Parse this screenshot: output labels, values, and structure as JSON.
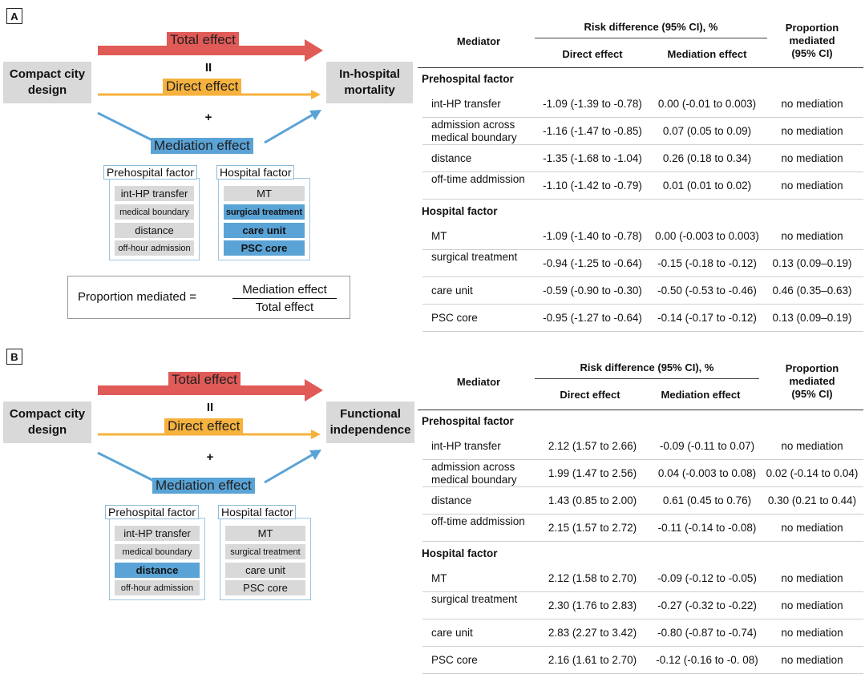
{
  "panels": [
    {
      "label": "A",
      "diagram": {
        "exposure": "Compact city\ndesign",
        "outcome": "In-hospital\nmortality",
        "total_effect": "Total effect",
        "equals_symbol": "II",
        "direct_effect": "Direct effect",
        "plus_symbol": "+",
        "mediation_effect": "Mediation effect",
        "prehospital_title": "Prehospital factor",
        "prehospital_items": [
          {
            "text": "int-HP transfer",
            "highlight": false
          },
          {
            "text": "medical boundary",
            "highlight": false
          },
          {
            "text": "distance",
            "highlight": false
          },
          {
            "text": "off-hour admission",
            "highlight": false
          }
        ],
        "hospital_title": "Hospital factor",
        "hospital_items": [
          {
            "text": "MT",
            "highlight": false
          },
          {
            "text": "surgical treatment",
            "highlight": true
          },
          {
            "text": "care unit",
            "highlight": true
          },
          {
            "text": "PSC core",
            "highlight": true
          }
        ],
        "formula": {
          "lhs": "Proportion mediated =",
          "numerator": "Mediation effect",
          "denominator": "Total effect"
        }
      },
      "table": {
        "col_mediator": "Mediator",
        "col_risk_difference": "Risk difference (95% CI), %",
        "col_direct": "Direct effect",
        "col_mediation": "Mediation effect",
        "col_proportion": "Proportion\nmediated\n(95% CI)",
        "sections": [
          {
            "title": "Prehospital factor",
            "rows": [
              {
                "mediator": "int-HP transfer",
                "direct": "-1.09 (-1.39 to -0.78)",
                "mediation": "0.00 (-0.01 to 0.003)",
                "proportion": "no mediation"
              },
              {
                "mediator": "admission across medical boundary",
                "direct": "-1.16 (-1.47 to -0.85)",
                "mediation": "0.07 (0.05 to 0.09)",
                "proportion": "no mediation"
              },
              {
                "mediator": "distance",
                "direct": "-1.35 (-1.68 to -1.04)",
                "mediation": "0.26 (0.18 to 0.34)",
                "proportion": "no mediation"
              },
              {
                "mediator": "off-time addmission",
                "direct": "-1.10 (-1.42 to -0.79)",
                "mediation": "0.01 (0.01 to 0.02)",
                "proportion": "no mediation"
              }
            ]
          },
          {
            "title": "Hospital factor",
            "rows": [
              {
                "mediator": "MT",
                "direct": "-1.09 (-1.40 to -0.78)",
                "mediation": "0.00 (-0.003 to 0.003)",
                "proportion": "no mediation"
              },
              {
                "mediator": "surgical treatment",
                "direct": "-0.94 (-1.25 to -0.64)",
                "mediation": "-0.15 (-0.18 to -0.12)",
                "proportion": "0.13 (0.09–0.19)"
              },
              {
                "mediator": "care unit",
                "direct": "-0.59 (-0.90 to -0.30)",
                "mediation": "-0.50 (-0.53 to -0.46)",
                "proportion": "0.46 (0.35–0.63)"
              },
              {
                "mediator": "PSC core",
                "direct": "-0.95 (-1.27 to -0.64)",
                "mediation": "-0.14 (-0.17 to -0.12)",
                "proportion": "0.13 (0.09–0.19)"
              }
            ]
          }
        ]
      }
    },
    {
      "label": "B",
      "diagram": {
        "exposure": "Compact city\ndesign",
        "outcome": "Functional\nindependence",
        "total_effect": "Total effect",
        "equals_symbol": "II",
        "direct_effect": "Direct effect",
        "plus_symbol": "+",
        "mediation_effect": "Mediation effect",
        "prehospital_title": "Prehospital factor",
        "prehospital_items": [
          {
            "text": "int-HP transfer",
            "highlight": false
          },
          {
            "text": "medical boundary",
            "highlight": false
          },
          {
            "text": "distance",
            "highlight": true
          },
          {
            "text": "off-hour admission",
            "highlight": false
          }
        ],
        "hospital_title": "Hospital factor",
        "hospital_items": [
          {
            "text": "MT",
            "highlight": false
          },
          {
            "text": "surgical treatment",
            "highlight": false
          },
          {
            "text": "care unit",
            "highlight": false
          },
          {
            "text": "PSC core",
            "highlight": false
          }
        ]
      },
      "table": {
        "col_mediator": "Mediator",
        "col_risk_difference": "Risk difference (95% CI), %",
        "col_direct": "Direct effect",
        "col_mediation": "Mediation effect",
        "col_proportion": "Proportion\nmediated\n(95% CI)",
        "sections": [
          {
            "title": "Prehospital factor",
            "rows": [
              {
                "mediator": "int-HP transfer",
                "direct": "2.12 (1.57 to 2.66)",
                "mediation": "-0.09 (-0.11 to 0.07)",
                "proportion": "no mediation"
              },
              {
                "mediator": "admission across medical boundary",
                "direct": "1.99 (1.47 to 2.56)",
                "mediation": "0.04 (-0.003 to 0.08)",
                "proportion": "0.02 (-0.14 to 0.04)"
              },
              {
                "mediator": "distance",
                "direct": "1.43 (0.85 to 2.00)",
                "mediation": "0.61 (0.45 to 0.76)",
                "proportion": "0.30 (0.21 to 0.44)"
              },
              {
                "mediator": "off-time addmission",
                "direct": "2.15 (1.57 to 2.72)",
                "mediation": "-0.11 (-0.14 to -0.08)",
                "proportion": "no mediation"
              }
            ]
          },
          {
            "title": "Hospital factor",
            "rows": [
              {
                "mediator": "MT",
                "direct": "2.12 (1.58 to 2.70)",
                "mediation": "-0.09 (-0.12 to -0.05)",
                "proportion": "no mediation"
              },
              {
                "mediator": "surgical treatment",
                "direct": "2.30 (1.76 to 2.83)",
                "mediation": "-0.27 (-0.32 to -0.22)",
                "proportion": "no mediation"
              },
              {
                "mediator": "care unit",
                "direct": "2.83 (2.27 to 3.42)",
                "mediation": "-0.80 (-0.87 to -0.74)",
                "proportion": "no mediation"
              },
              {
                "mediator": "PSC core",
                "direct": "2.16 (1.61 to 2.70)",
                "mediation": "-0.12 (-0.16 to -0. 08)",
                "proportion": "no mediation"
              }
            ]
          }
        ]
      }
    }
  ],
  "colors": {
    "total_effect": "#e05a57",
    "direct_effect": "#f6b23d",
    "mediation_effect": "#5aa3d6",
    "highlight_item": "#5aa3d6",
    "neutral_box": "#d9d9d9"
  }
}
